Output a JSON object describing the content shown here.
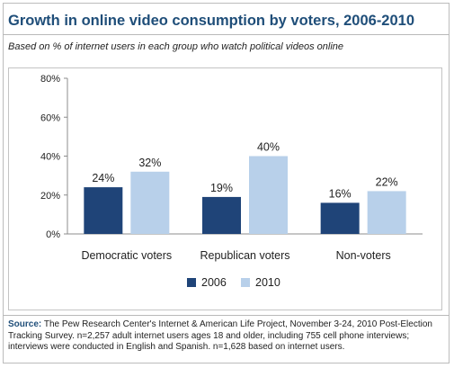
{
  "title": "Growth in online video consumption by voters, 2006-2010",
  "subtitle": "Based on % of internet users in each group who watch political videos online",
  "source_label": "Source:",
  "source_text": "The Pew Research Center's Internet & American Life Project, November 3-24, 2010 Post-Election Tracking Survey. n=2,257 adult internet users ages 18 and older, including 755 cell phone interviews; interviews were conducted in English and Spanish. n=1,628 based on internet users.",
  "colors": {
    "series_2006": "#1f4478",
    "series_2010": "#b8d0ea",
    "title": "#1f4e79"
  },
  "chart_data": {
    "type": "bar",
    "categories": [
      "Democratic voters",
      "Republican voters",
      "Non-voters"
    ],
    "series": [
      {
        "name": "2006",
        "values": [
          24,
          19,
          16
        ],
        "labels": [
          "24%",
          "19%",
          "16%"
        ]
      },
      {
        "name": "2010",
        "values": [
          32,
          40,
          22
        ],
        "labels": [
          "32%",
          "40%",
          "22%"
        ]
      }
    ],
    "ylim": [
      0,
      80
    ],
    "yticks": [
      0,
      20,
      40,
      60,
      80
    ],
    "ytick_labels": [
      "0%",
      "20%",
      "40%",
      "60%",
      "80%"
    ],
    "grid": false,
    "legend_position": "bottom"
  }
}
